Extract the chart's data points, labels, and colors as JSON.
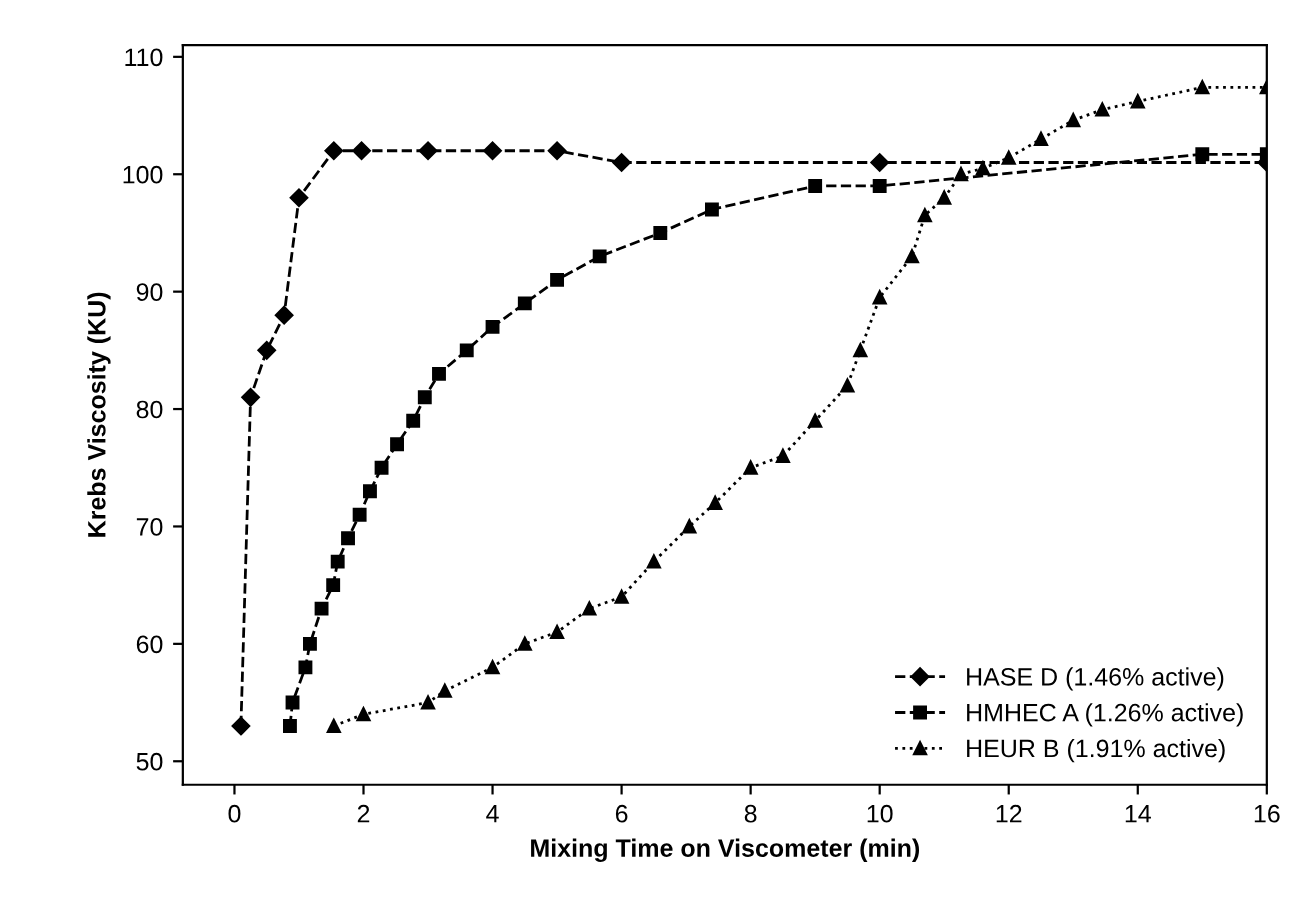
{
  "chart_data": {
    "type": "line",
    "xlabel": "Mixing Time on Viscometer (min)",
    "ylabel": "Krebs Viscosity (KU)",
    "xlim": [
      -0.8,
      16
    ],
    "ylim": [
      48,
      111
    ],
    "xticks": [
      0,
      2,
      4,
      6,
      8,
      10,
      12,
      14,
      16
    ],
    "yticks": [
      50,
      60,
      70,
      80,
      90,
      100,
      110
    ],
    "grid": false,
    "legend": "bottom right",
    "series": [
      {
        "name": "HASE D (1.46% active)",
        "color": "#000000",
        "marker": "diamond",
        "line_style": "dashed",
        "x": [
          0.1,
          0.25,
          0.5,
          0.77,
          1.0,
          1.54,
          1.97,
          3.0,
          4.0,
          5.0,
          6.0,
          10.0,
          16.0
        ],
        "values": [
          53,
          81,
          85,
          88,
          98,
          102,
          102,
          102,
          102,
          102,
          101,
          101,
          101
        ]
      },
      {
        "name": "HMHEC A (1.26% active)",
        "color": "#000000",
        "marker": "square",
        "line_style": "dashed",
        "x": [
          0.86,
          0.9,
          1.1,
          1.17,
          1.35,
          1.53,
          1.6,
          1.76,
          1.94,
          2.1,
          2.28,
          2.52,
          2.77,
          2.95,
          3.17,
          3.6,
          4.0,
          4.5,
          5.0,
          5.66,
          6.6,
          7.4,
          9.0,
          10.0,
          15.0,
          16.0
        ],
        "values": [
          53,
          55,
          58,
          60,
          63,
          65,
          67,
          69,
          71,
          73,
          75,
          77,
          79,
          81,
          83,
          85,
          87,
          89,
          91,
          93,
          95,
          97,
          99,
          99,
          101.7,
          101.7
        ]
      },
      {
        "name": "HEUR B (1.91% active)",
        "color": "#000000",
        "marker": "triangle",
        "line_style": "dotted",
        "x": [
          1.54,
          2.0,
          3.0,
          3.26,
          4.0,
          4.5,
          5.0,
          5.5,
          6.0,
          6.5,
          7.05,
          7.45,
          8.0,
          8.5,
          9.0,
          9.5,
          9.7,
          10.0,
          10.5,
          10.7,
          11.0,
          11.26,
          11.6,
          12.0,
          12.5,
          13.0,
          13.45,
          14.0,
          15.0,
          16.0
        ],
        "values": [
          53,
          54,
          55,
          56,
          58,
          60,
          61,
          63,
          64,
          67,
          70,
          72,
          75,
          76,
          79,
          82,
          85,
          89.5,
          93,
          96.5,
          98,
          100,
          100.5,
          101.4,
          103,
          104.6,
          105.5,
          106.2,
          107.4,
          107.4
        ]
      }
    ]
  }
}
